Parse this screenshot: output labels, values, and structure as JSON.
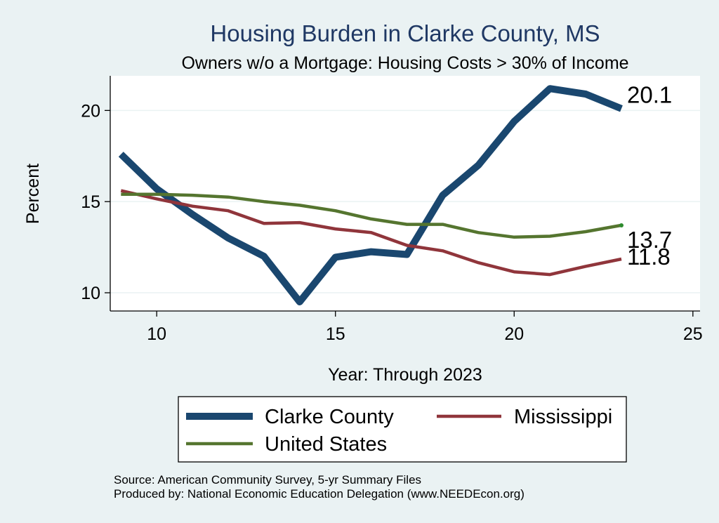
{
  "chart_data": {
    "type": "line",
    "title": "Housing Burden in Clarke County, MS",
    "subtitle": "Owners w/o a Mortgage: Housing Costs > 30% of Income",
    "xlabel": "Year: Through 2023",
    "ylabel": "Percent",
    "xlim": [
      8.7,
      25.2
    ],
    "ylim": [
      9.0,
      21.9
    ],
    "x_ticks": [
      10,
      15,
      20,
      25
    ],
    "y_ticks": [
      10,
      15,
      20
    ],
    "x": [
      9,
      10,
      11,
      12,
      13,
      14,
      15,
      16,
      17,
      18,
      19,
      20,
      21,
      22,
      23
    ],
    "series": [
      {
        "name": "Clarke County",
        "color": "#1a476f",
        "values": [
          17.6,
          15.7,
          14.3,
          13.0,
          12.0,
          9.5,
          11.95,
          12.25,
          12.1,
          15.35,
          17.0,
          19.4,
          21.2,
          20.9,
          20.1
        ],
        "end_label": "20.1"
      },
      {
        "name": "Mississippi",
        "color": "#90353b",
        "values": [
          15.6,
          15.15,
          14.75,
          14.5,
          13.8,
          13.85,
          13.5,
          13.3,
          12.6,
          12.3,
          11.65,
          11.15,
          11.0,
          11.45,
          11.85
        ],
        "end_label": "11.8"
      },
      {
        "name": "United States",
        "color": "#55752f",
        "values": [
          15.4,
          15.4,
          15.35,
          15.25,
          15.0,
          14.8,
          14.5,
          14.05,
          13.75,
          13.75,
          13.3,
          13.05,
          13.1,
          13.35,
          13.7
        ],
        "end_label": "13.7"
      }
    ],
    "legend": {
      "position": "bottom",
      "entries": [
        "Clarke County",
        "Mississippi",
        "United States"
      ]
    }
  },
  "footer": {
    "source": "Source: American Community Survey, 5-yr Summary Files",
    "produced_by": "Produced by: National Economic Education Delegation (www.NEEDEcon.org)"
  }
}
